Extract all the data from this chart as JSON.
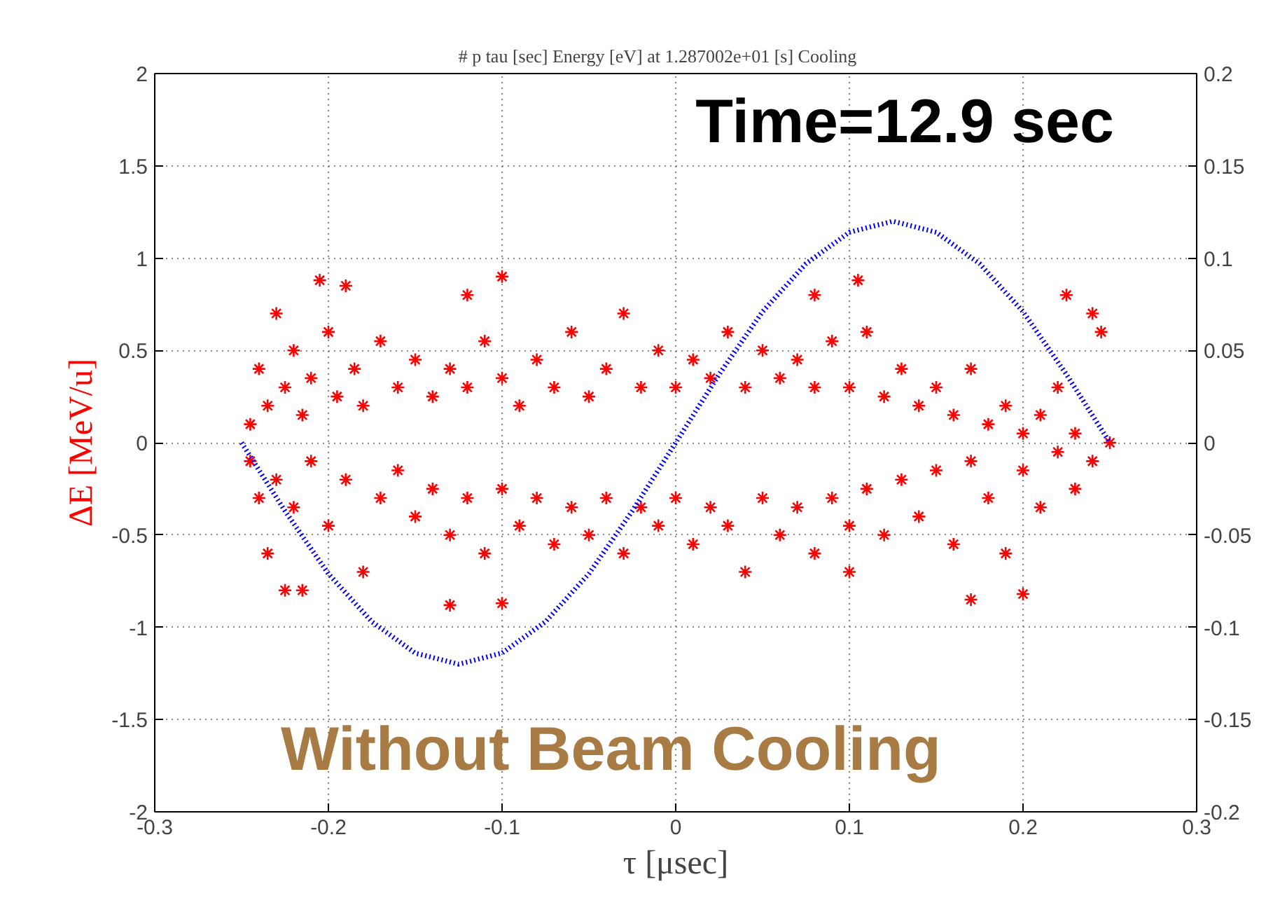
{
  "chart_data": {
    "type": "scatter",
    "title": "# p    tau [sec]   Energy [eV]  at 1.287002e+01 [s]   Cooling",
    "xlabel": "τ [μsec]",
    "ylabel": "ΔE [MeV/u]",
    "annotations": [
      "Time=12.9 sec",
      "Without Beam Cooling"
    ],
    "xlim": [
      -0.3,
      0.3
    ],
    "xticks": [
      -0.3,
      -0.2,
      -0.1,
      0,
      0.1,
      0.2,
      0.3
    ],
    "ylim": [
      -2,
      2
    ],
    "yticks": [
      -2,
      -1.5,
      -1,
      -0.5,
      0,
      0.5,
      1,
      1.5,
      2
    ],
    "y2lim": [
      -0.2,
      0.2
    ],
    "y2ticks": [
      -0.2,
      -0.15,
      -0.1,
      -0.05,
      0,
      0.05,
      0.1,
      0.15,
      0.2
    ],
    "grid": true,
    "series": [
      {
        "marker": "cross",
        "color": "#ff0000",
        "x": [
          -0.245,
          -0.24,
          -0.235,
          -0.23,
          -0.225,
          -0.22,
          -0.215,
          -0.21,
          -0.2,
          -0.195,
          -0.19,
          -0.185,
          -0.18,
          -0.17,
          -0.16,
          -0.15,
          -0.14,
          -0.13,
          -0.12,
          -0.11,
          -0.1,
          -0.09,
          -0.08,
          -0.07,
          -0.06,
          -0.05,
          -0.04,
          -0.03,
          -0.02,
          -0.01,
          0,
          0.01,
          0.02,
          0.03,
          0.04,
          0.05,
          0.06,
          0.07,
          0.08,
          0.09,
          0.1,
          0.11,
          0.12,
          0.13,
          0.14,
          0.15,
          0.16,
          0.17,
          0.18,
          0.19,
          0.2,
          0.21,
          0.22,
          0.23,
          0.24,
          0.245,
          0.25,
          -0.205,
          -0.12,
          -0.1,
          0.08,
          0.105,
          0.225,
          -0.245,
          -0.24,
          -0.235,
          -0.23,
          -0.225,
          -0.22,
          -0.21,
          -0.2,
          -0.19,
          -0.18,
          -0.17,
          -0.16,
          -0.15,
          -0.14,
          -0.13,
          -0.12,
          -0.11,
          -0.1,
          -0.09,
          -0.08,
          -0.07,
          -0.06,
          -0.05,
          -0.04,
          -0.03,
          -0.02,
          -0.01,
          0,
          0.01,
          0.02,
          0.03,
          0.04,
          0.05,
          0.06,
          0.07,
          0.08,
          0.09,
          0.1,
          0.11,
          0.12,
          0.13,
          0.14,
          0.15,
          0.16,
          0.17,
          0.18,
          0.19,
          0.2,
          0.21,
          0.22,
          0.23,
          0.24,
          -0.13,
          -0.1,
          0.17,
          0.2,
          -0.215,
          0.1
        ],
        "values": [
          0.1,
          0.4,
          0.2,
          0.7,
          0.3,
          0.5,
          0.15,
          0.35,
          0.6,
          0.25,
          0.85,
          0.4,
          0.2,
          0.55,
          0.3,
          0.45,
          0.25,
          0.4,
          0.3,
          0.55,
          0.35,
          0.2,
          0.45,
          0.3,
          0.6,
          0.25,
          0.4,
          0.7,
          0.3,
          0.5,
          0.3,
          0.45,
          0.35,
          0.6,
          0.3,
          0.5,
          0.35,
          0.45,
          0.3,
          0.55,
          0.3,
          0.6,
          0.25,
          0.4,
          0.2,
          0.3,
          0.15,
          0.4,
          0.1,
          0.2,
          0.05,
          0.15,
          0.3,
          0.05,
          0.7,
          0.6,
          0.0,
          0.88,
          0.8,
          0.9,
          0.8,
          0.88,
          0.8,
          -0.1,
          -0.3,
          -0.6,
          -0.2,
          -0.8,
          -0.35,
          -0.1,
          -0.45,
          -0.2,
          -0.7,
          -0.3,
          -0.15,
          -0.4,
          -0.25,
          -0.5,
          -0.3,
          -0.6,
          -0.25,
          -0.45,
          -0.3,
          -0.55,
          -0.35,
          -0.5,
          -0.3,
          -0.6,
          -0.35,
          -0.45,
          -0.3,
          -0.55,
          -0.35,
          -0.45,
          -0.7,
          -0.3,
          -0.5,
          -0.35,
          -0.6,
          -0.3,
          -0.45,
          -0.25,
          -0.5,
          -0.2,
          -0.4,
          -0.15,
          -0.55,
          -0.1,
          -0.3,
          -0.6,
          -0.15,
          -0.35,
          -0.05,
          -0.25,
          -0.1,
          -0.88,
          -0.87,
          -0.85,
          -0.82,
          -0.8,
          -0.7
        ]
      },
      {
        "type": "line",
        "axis": "y2",
        "marker": "none",
        "line_style": "dotted",
        "color": "#0000ff",
        "x": [
          -0.25,
          -0.225,
          -0.2,
          -0.175,
          -0.15,
          -0.125,
          -0.1,
          -0.075,
          -0.05,
          -0.025,
          0,
          0.025,
          0.05,
          0.075,
          0.1,
          0.125,
          0.15,
          0.175,
          0.2,
          0.225,
          0.25
        ],
        "values": [
          0,
          -0.037,
          -0.071,
          -0.097,
          -0.114,
          -0.12,
          -0.114,
          -0.097,
          -0.071,
          -0.037,
          0,
          0.037,
          0.071,
          0.097,
          0.114,
          0.12,
          0.114,
          0.097,
          0.071,
          0.037,
          0
        ]
      }
    ]
  }
}
